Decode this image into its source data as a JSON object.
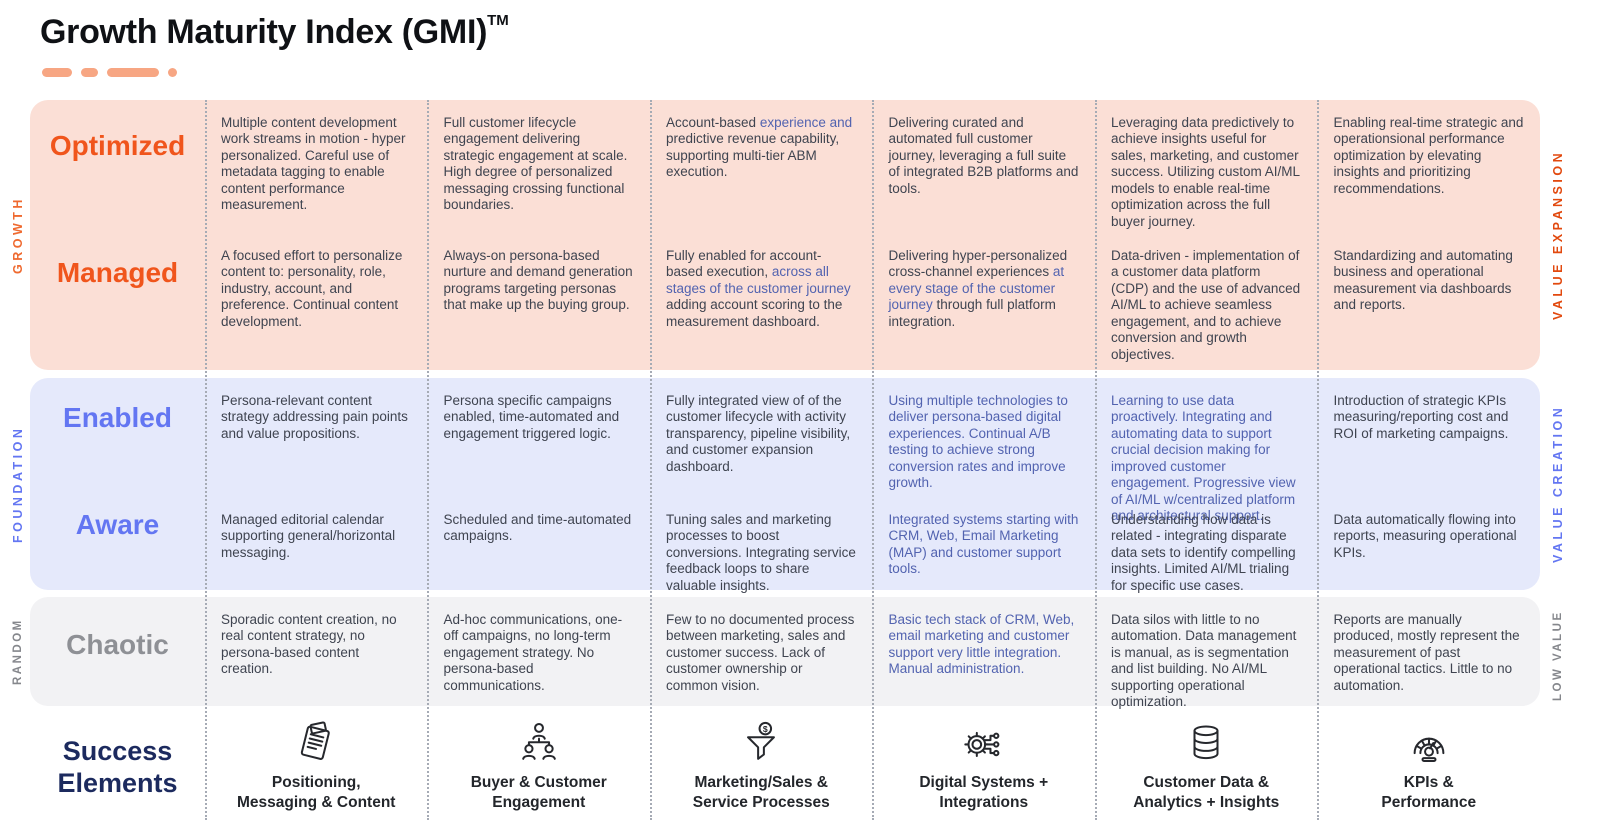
{
  "title": {
    "text": "Growth Maturity Index (GMI)",
    "superscript": "TM"
  },
  "colors": {
    "accent_orange": "#f0551c",
    "peach_band": "#fbdfd6",
    "lavender_band": "#e5e9fb",
    "gray_band": "#f2f2f4",
    "periwinkle_label": "#6376f2",
    "gray_label": "#8e9095",
    "navy": "#1c2a5e",
    "body_text": "#3f4450",
    "blue_body_text": "#5263b0"
  },
  "matrix": {
    "bands": [
      {
        "id": "growth",
        "left_rail": "GROWTH",
        "right_rail": "VALUE EXPANSION",
        "rows": [
          {
            "label": "Optimized",
            "cells": [
              [
                {
                  "t": "Multiple content development work streams in motion - hyper personalized. Careful use of metadata tagging to enable content performance measurement."
                }
              ],
              [
                {
                  "t": "Full customer lifecycle engagement delivering strategic engagement at scale. High degree of personalized messaging crossing functional boundaries."
                }
              ],
              [
                {
                  "t": "Account-based "
                },
                {
                  "t": "experience and",
                  "c": "blue"
                },
                {
                  "t": " predictive revenue capability, supporting multi-tier ABM execution."
                }
              ],
              [
                {
                  "t": "Delivering curated and automated full customer journey, leveraging  a full suite of integrated B2B platforms and tools."
                }
              ],
              [
                {
                  "t": "Leveraging data predictively to achieve insights useful for sales, marketing, and customer success. Utilizing custom AI/ML models to enable real-time optimization across the full buyer journey."
                }
              ],
              [
                {
                  "t": "Enabling real-time strategic and operationsional performance optimization by elevating insights and prioritizing recommendations."
                }
              ]
            ]
          },
          {
            "label": "Managed",
            "cells": [
              [
                {
                  "t": "A focused effort to personalize content to: personality, role, industry, account, and preference. Continual content development."
                }
              ],
              [
                {
                  "t": "Always-on persona-based nurture and demand generation programs targeting personas that make up the buying group."
                }
              ],
              [
                {
                  "t": "Fully enabled for account-based execution, "
                },
                {
                  "t": "across all stages of the customer journey",
                  "c": "blue"
                },
                {
                  "t": " adding account scoring to the measurement dashboard."
                }
              ],
              [
                {
                  "t": "Delivering hyper-personalized cross-channel experiences "
                },
                {
                  "t": "at every stage of the customer journey",
                  "c": "blue"
                },
                {
                  "t": " through full platform integration."
                }
              ],
              [
                {
                  "t": "Data-driven - implementation of a customer data platform (CDP) and the use of  advanced AI/ML to achieve seamless engagement, and to achieve conversion and growth objectives."
                }
              ],
              [
                {
                  "t": "Standardizing and automating business and operational measurement via dashboards and reports."
                }
              ]
            ]
          }
        ]
      },
      {
        "id": "foundation",
        "left_rail": "FOUNDATION",
        "right_rail": "VALUE CREATION",
        "rows": [
          {
            "label": "Enabled",
            "cells": [
              [
                {
                  "t": "Persona-relevant content strategy addressing pain points and value propositions."
                }
              ],
              [
                {
                  "t": "Persona specific campaigns enabled, time-automated and engagement triggered logic."
                }
              ],
              [
                {
                  "t": "Fully integrated view of of the customer lifecycle with activity transparency, pipeline visibility, and customer expansion dashboard."
                }
              ],
              [
                {
                  "t": "Using multiple technologies to deliver persona-based digital experiences. Continual A/B testing to achieve strong conversion rates and improve growth.",
                  "c": "blue"
                }
              ],
              [
                {
                  "t": "Learning to use data proactively. Integrating and automating data to support crucial decision making for improved customer engagement. Progressive view of AI/ML w/centralized platform and architectural support.",
                  "c": "blue"
                }
              ],
              [
                {
                  "t": "Introduction of strategic KPIs measuring/reporting cost and ROI of marketing campaigns."
                }
              ]
            ]
          },
          {
            "label": "Aware",
            "cells": [
              [
                {
                  "t": "Managed editorial calendar supporting general/horizontal messaging."
                }
              ],
              [
                {
                  "t": "Scheduled and time-automated campaigns."
                }
              ],
              [
                {
                  "t": "Tuning sales and marketing processes to boost conversions. Integrating service feedback loops to share valuable insights."
                }
              ],
              [
                {
                  "t": "Integrated systems starting with CRM, Web, Email Marketing (MAP) and customer support tools.",
                  "c": "blue"
                }
              ],
              [
                {
                  "t": "Understanding how data is related - integrating disparate data sets to identify compelling insights. Limited AI/ML trialing for specific use cases."
                }
              ],
              [
                {
                  "t": "Data automatically flowing into reports, measuring operational KPIs."
                }
              ]
            ]
          }
        ]
      },
      {
        "id": "random",
        "left_rail": "RANDOM",
        "right_rail": "LOW VALUE",
        "rows": [
          {
            "label": "Chaotic",
            "cells": [
              [
                {
                  "t": "Sporadic content creation, no real content strategy, no persona-based content creation."
                }
              ],
              [
                {
                  "t": "Ad-hoc communications, one-off campaigns, no long-term engagement strategy. No persona-based communications."
                }
              ],
              [
                {
                  "t": "Few to no documented process between marketing, sales and customer success. Lack of customer ownership or common vision."
                }
              ],
              [
                {
                  "t": "Basic tech  stack of CRM, Web, email marketing and customer support very little integration. Manual administration.",
                  "c": "blue"
                }
              ],
              [
                {
                  "t": "Data silos with little to no automation. Data management is manual, as is segmentation and list building. No AI/ML supporting operational optimization."
                }
              ],
              [
                {
                  "t": "Reports are manually produced, mostly represent the measurement of  past operational tactics. Little to no automation."
                }
              ]
            ]
          }
        ]
      }
    ]
  },
  "footer": {
    "title": "Success\nElements",
    "items": [
      {
        "icon": "document-icon",
        "label": "Positioning,\nMessaging & Content"
      },
      {
        "icon": "people-org-icon",
        "label": "Buyer & Customer\nEngagement"
      },
      {
        "icon": "funnel-dollar-icon",
        "label": "Marketing/Sales &\nService Processes"
      },
      {
        "icon": "gear-circuit-icon",
        "label": "Digital Systems +\nIntegrations"
      },
      {
        "icon": "database-icon",
        "label": "Customer Data &\nAnalytics + Insights"
      },
      {
        "icon": "gauge-icon",
        "label": "KPIs &\nPerformance"
      }
    ]
  }
}
